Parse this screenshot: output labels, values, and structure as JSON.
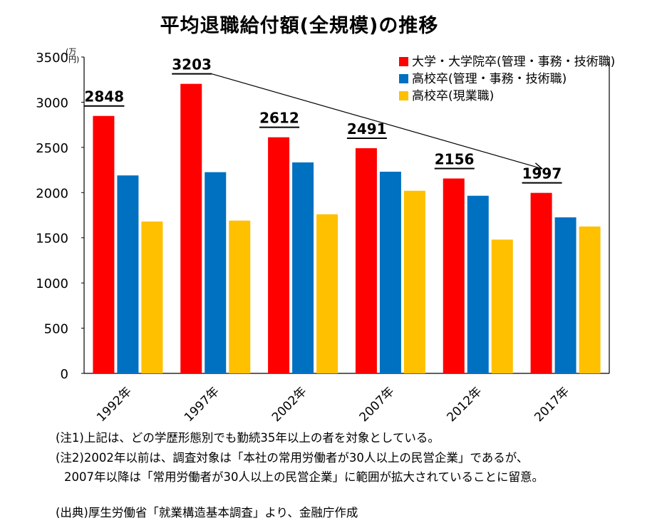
{
  "chart_data": {
    "type": "bar",
    "title": "平均退職給付額(全規模)の推移",
    "ylabel": "(万円)",
    "ylim": [
      0,
      3500
    ],
    "yticks": [
      0,
      500,
      1000,
      1500,
      2000,
      2500,
      3000,
      3500
    ],
    "categories": [
      "1992年",
      "1997年",
      "2002年",
      "2007年",
      "2012年",
      "2017年"
    ],
    "series": [
      {
        "name": "大学・大学院卒(管理・事務・技術職)",
        "color": "#ff0000",
        "values": [
          2848,
          3203,
          2612,
          2491,
          2156,
          1997
        ]
      },
      {
        "name": "高校卒(管理・事務・技術職)",
        "color": "#0070c0",
        "values": [
          2190,
          2226,
          2334,
          2231,
          1965,
          1726
        ]
      },
      {
        "name": "高校卒(現業職)",
        "color": "#ffc000",
        "values": [
          1680,
          1690,
          1760,
          2020,
          1480,
          1625
        ]
      }
    ],
    "data_labels": [
      "2848",
      "3203",
      "2612",
      "2491",
      "2156",
      "1997"
    ],
    "trend_arrow": {
      "from_category": "1997年",
      "to_category": "2017年"
    },
    "legend": "top-right",
    "grid": false
  },
  "notes": {
    "note1": "(注1)上記は、どの学歴形態別でも勤続35年以上の者を対象としている。",
    "note2a": "(注2)2002年以前は、調査対象は「本社の常用労働者が30人以上の民営企業」であるが、",
    "note2b": "2007年以降は「常用労働者が30人以上の民営企業」に範囲が拡大されていることに留意。",
    "source": "(出典)厚生労働省「就業構造基本調査」より、金融庁作成"
  }
}
